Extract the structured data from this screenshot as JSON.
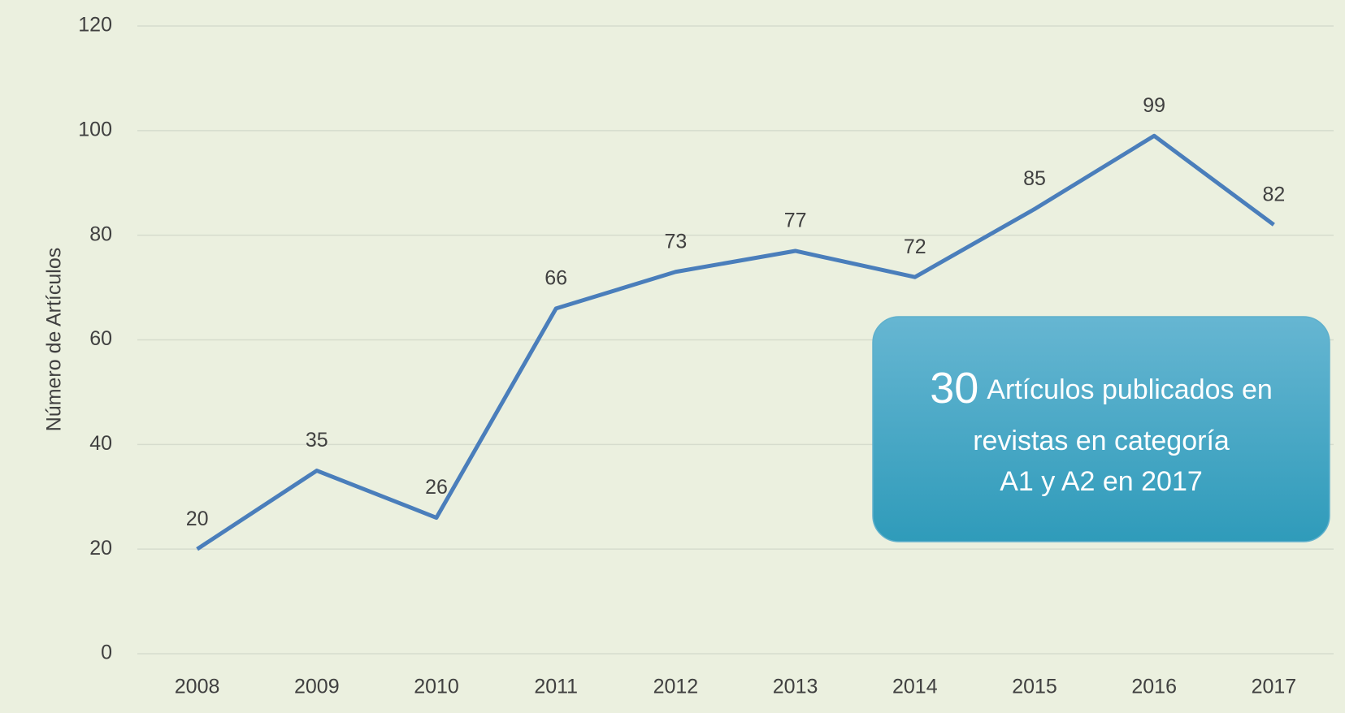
{
  "chart_data": {
    "type": "line",
    "y_axis_label": "Número de Artículos",
    "categories": [
      "2008",
      "2009",
      "2010",
      "2011",
      "2012",
      "2013",
      "2014",
      "2015",
      "2016",
      "2017"
    ],
    "series": [
      {
        "name": "Artículos",
        "color": "#4a7ebb",
        "values": [
          20,
          35,
          26,
          66,
          73,
          77,
          72,
          85,
          99,
          82
        ]
      }
    ],
    "ylim": [
      0,
      120
    ],
    "yticks": [
      0,
      20,
      40,
      60,
      80,
      100,
      120
    ],
    "grid": true,
    "annotation": {
      "highlight": 30,
      "lines": [
        "Artículos publicados en",
        "revistas en categoría",
        "A1 y A2 en 2017"
      ]
    }
  }
}
